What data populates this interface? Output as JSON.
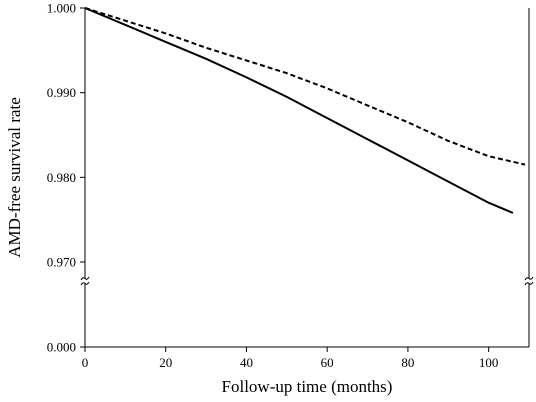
{
  "chart_data": {
    "type": "line",
    "title": "",
    "xlabel": "Follow-up time (months)",
    "ylabel": "AMD-free survival  rate",
    "xlim": [
      0,
      110
    ],
    "x_ticks": [
      0,
      20,
      40,
      60,
      80,
      100
    ],
    "x_tick_labels": [
      "0",
      "20",
      "40",
      "60",
      "80",
      "100"
    ],
    "y_axis_break": {
      "from": 0.0,
      "to": 0.967
    },
    "y_ticks": [
      0.0,
      0.97,
      0.98,
      0.99,
      1.0
    ],
    "y_tick_labels": [
      "0.000",
      "0.970",
      "0.980",
      "0.990",
      "1.000"
    ],
    "ylim_upper": [
      0.967,
      1.0
    ],
    "grid": false,
    "series": [
      {
        "style": "solid",
        "color": "#000000",
        "x": [
          0,
          10,
          20,
          30,
          40,
          50,
          60,
          70,
          80,
          90,
          100,
          106
        ],
        "y": [
          1.0,
          0.998,
          0.996,
          0.994,
          0.9918,
          0.9895,
          0.987,
          0.9845,
          0.982,
          0.9795,
          0.977,
          0.9758
        ]
      },
      {
        "style": "dashed",
        "color": "#000000",
        "x": [
          0,
          10,
          20,
          30,
          40,
          50,
          60,
          70,
          80,
          90,
          100,
          109
        ],
        "y": [
          1.0,
          0.9985,
          0.997,
          0.9953,
          0.9938,
          0.9923,
          0.9905,
          0.9885,
          0.9865,
          0.9843,
          0.9825,
          0.9815
        ]
      }
    ]
  }
}
